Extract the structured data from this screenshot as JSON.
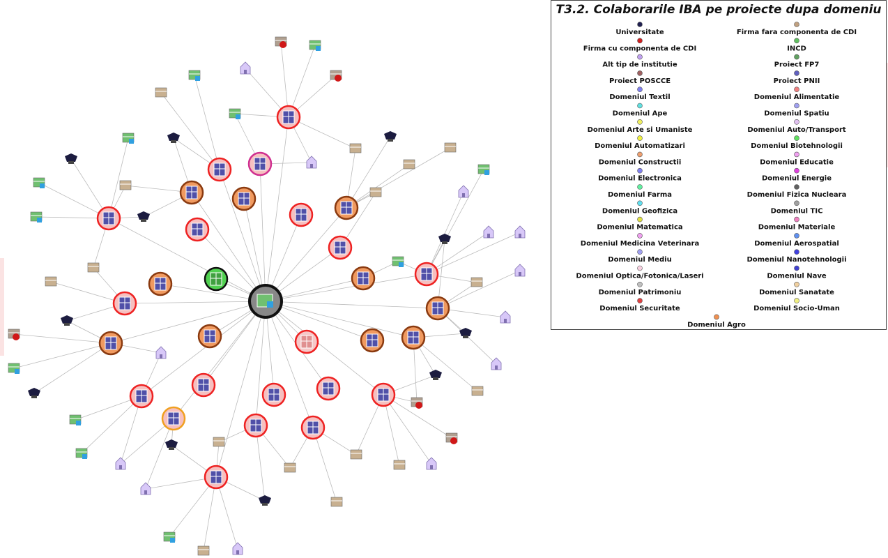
{
  "legend": {
    "title": "T3.2. Colaborarile IBA pe proiecte dupa domeniu",
    "items": [
      {
        "label": "Universitate",
        "color": "#202050"
      },
      {
        "label": "Firma fara componenta de CDI",
        "color": "#c0a080"
      },
      {
        "label": "Firma cu componenta de CDI",
        "color": "#d02020"
      },
      {
        "label": "INCD",
        "color": "#60c060"
      },
      {
        "label": "Alt tip de institutie",
        "color": "#c0a0f0"
      },
      {
        "label": "Proiect FP7",
        "color": "#60a060"
      },
      {
        "label": "Proiect POSCCE",
        "color": "#a06060"
      },
      {
        "label": "Proiect PNII",
        "color": "#6060c0"
      },
      {
        "label": "Domeniul Textil",
        "color": "#8080f0"
      },
      {
        "label": "Domeniul Alimentatie",
        "color": "#f08080"
      },
      {
        "label": "Domeniul Ape",
        "color": "#60e0e0"
      },
      {
        "label": "Domeniul Spatiu",
        "color": "#a0a0f0"
      },
      {
        "label": "Domeniul Arte si Umaniste",
        "color": "#f0f060"
      },
      {
        "label": "Domeniul Auto/Transport",
        "color": "#e0c0f0"
      },
      {
        "label": "Domeniul Automatizari",
        "color": "#f0f040"
      },
      {
        "label": "Domeniul Biotehnologii",
        "color": "#60e060"
      },
      {
        "label": "Domeniul Constructii",
        "color": "#f0a070"
      },
      {
        "label": "Domeniul Educatie",
        "color": "#f0a0f0"
      },
      {
        "label": "Domeniul Electronica",
        "color": "#8080f0"
      },
      {
        "label": "Domeniul Energie",
        "color": "#e040e0"
      },
      {
        "label": "Domeniul Farma",
        "color": "#60f0a0"
      },
      {
        "label": "Domeniul Fizica Nucleara",
        "color": "#606060"
      },
      {
        "label": "Domeniul Geofizica",
        "color": "#60e0f0"
      },
      {
        "label": "Domeniul TIC",
        "color": "#a0a0a0"
      },
      {
        "label": "Domeniul Matematica",
        "color": "#e0e040"
      },
      {
        "label": "Domeniul Materiale",
        "color": "#f080c0"
      },
      {
        "label": "Domeniul Medicina Veterinara",
        "color": "#f0a0f0"
      },
      {
        "label": "Domeniul Aerospatial",
        "color": "#6090f0"
      },
      {
        "label": "Domeniul Mediu",
        "color": "#a0a0f0"
      },
      {
        "label": "Domeniul Nanotehnologii",
        "color": "#4040e0"
      },
      {
        "label": "Domeniul Optica/Fotonica/Laseri",
        "color": "#f8d0e0"
      },
      {
        "label": "Domeniul Nave",
        "color": "#4040d0"
      },
      {
        "label": "Domeniul Patrimoniu",
        "color": "#c0c0c0"
      },
      {
        "label": "Domeniul Sanatate",
        "color": "#f0d0a0"
      },
      {
        "label": "Domeniul Securitate",
        "color": "#e04040"
      },
      {
        "label": "Domeniul Socio-Uman",
        "color": "#f0f080"
      },
      {
        "label": "Domeniul Agro",
        "color": "#f09050"
      }
    ]
  }
}
